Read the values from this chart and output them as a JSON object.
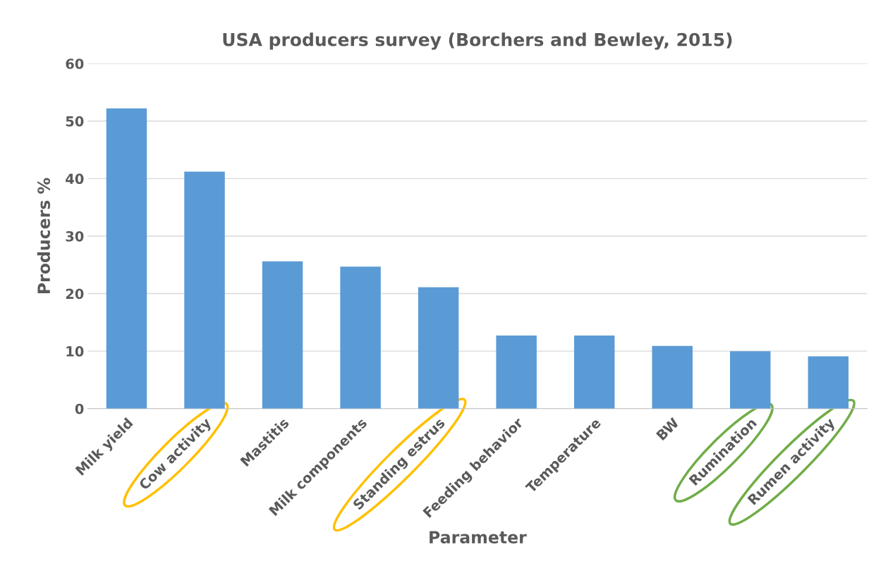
{
  "chart_data": {
    "type": "bar",
    "title": "USA producers survey (Borchers and Bewley, 2015)",
    "xlabel": "Parameter",
    "ylabel": "Producers %",
    "categories": [
      "Milk yield",
      "Cow activity",
      "Mastitis",
      "Milk components",
      "Standing estrus",
      "Feeding behavior",
      "Temperature",
      "BW",
      "Rumination",
      "Rumen activity"
    ],
    "values": [
      52.2,
      41.2,
      25.6,
      24.7,
      21.1,
      12.7,
      12.7,
      10.9,
      10.0,
      9.1
    ],
    "color": "#5b9bd5",
    "ylim": [
      0,
      60
    ],
    "yticks": [
      0,
      10,
      20,
      30,
      40,
      50,
      60
    ],
    "grid": "y"
  }
}
